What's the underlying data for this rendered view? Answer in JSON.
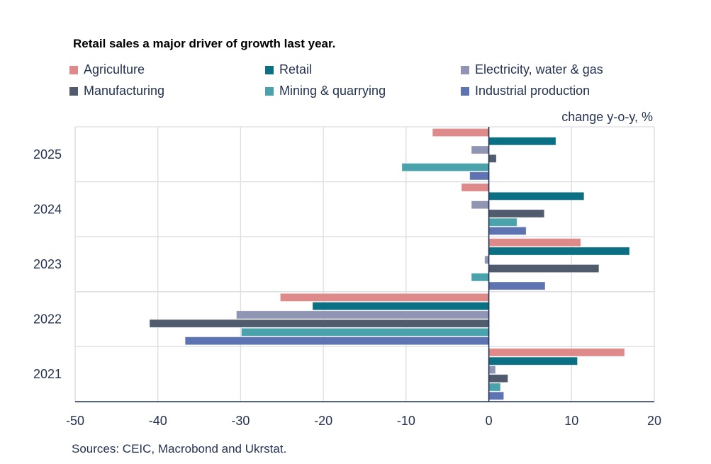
{
  "chart_data": {
    "type": "bar",
    "orientation": "horizontal",
    "title": "Retail sales a major driver of growth last year.",
    "xlabel": "change y-o-y, %",
    "ylabel": "",
    "xlim": [
      -50,
      20
    ],
    "xticks": [
      -50,
      -40,
      -30,
      -20,
      -10,
      0,
      10,
      20
    ],
    "grid": true,
    "legend_position": "top",
    "categories": [
      "2025",
      "2024",
      "2023",
      "2022",
      "2021"
    ],
    "series": [
      {
        "name": "Agriculture",
        "color": "#DE8A8A",
        "values": [
          -6.8,
          -3.3,
          11.1,
          -25.2,
          16.4
        ]
      },
      {
        "name": "Retail",
        "color": "#0C7084",
        "values": [
          8.1,
          11.5,
          17.0,
          -21.3,
          10.7
        ]
      },
      {
        "name": "Electricity, water & gas",
        "color": "#8F95B2",
        "values": [
          -2.1,
          -2.1,
          -0.5,
          -30.5,
          0.8
        ]
      },
      {
        "name": "Manufacturing",
        "color": "#505C6E",
        "values": [
          0.9,
          6.7,
          13.3,
          -41.0,
          2.3
        ]
      },
      {
        "name": "Mining & quarrying",
        "color": "#4AA3AC",
        "values": [
          -10.5,
          3.4,
          -2.1,
          -29.9,
          1.4
        ]
      },
      {
        "name": "Industrial production",
        "color": "#5E74B2",
        "values": [
          -2.3,
          4.5,
          6.8,
          -36.7,
          1.8
        ]
      }
    ],
    "source": "Sources: CEIC, Macrobond and Ukrstat."
  }
}
